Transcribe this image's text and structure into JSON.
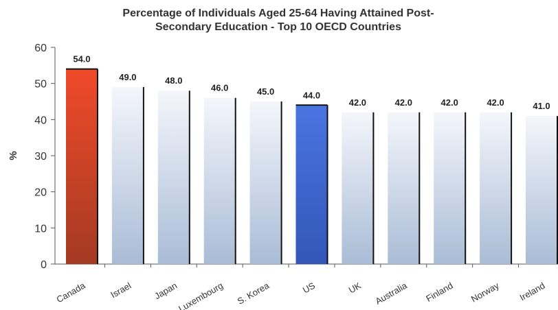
{
  "chart_data": {
    "type": "bar",
    "title_line1": "Percentage of Individuals Aged 25-64 Having Attained Post-",
    "title_line2": "Secondary Education - Top 10 OECD Countries",
    "xlabel": "",
    "ylabel": "%",
    "ylim": [
      0,
      60
    ],
    "yticks": [
      "0",
      "10",
      "20",
      "30",
      "40",
      "50",
      "60"
    ],
    "categories": [
      "Canada",
      "Israel",
      "Japan",
      "Luxembourg",
      "S. Korea",
      "US",
      "UK",
      "Australia",
      "Finland",
      "Norway",
      "Ireland"
    ],
    "values": [
      54.0,
      49.0,
      48.0,
      46.0,
      45.0,
      44.0,
      42.0,
      42.0,
      42.0,
      42.0,
      41.0
    ],
    "value_labels": [
      "54.0",
      "49.0",
      "48.0",
      "46.0",
      "45.0",
      "44.0",
      "42.0",
      "42.0",
      "42.0",
      "42.0",
      "41.0"
    ],
    "highlight": {
      "Canada": "#c0392b",
      "US": "#3a5fc8"
    },
    "default_bar_color": "#c9d6e8",
    "grid": false,
    "legend": "none"
  }
}
